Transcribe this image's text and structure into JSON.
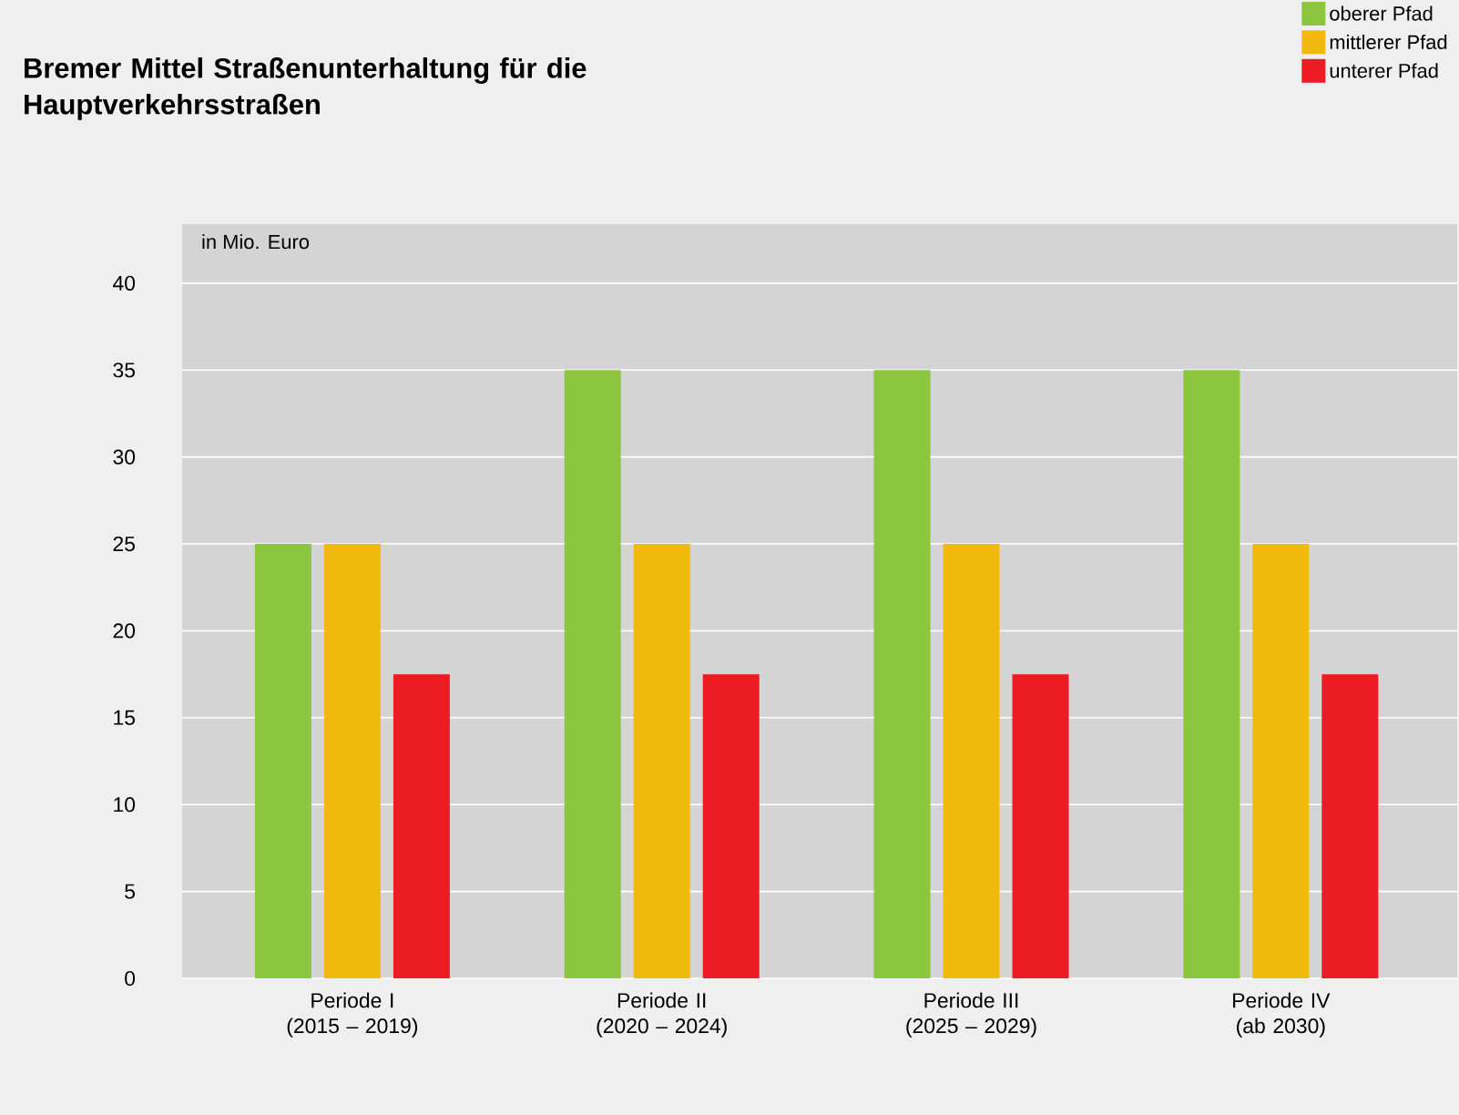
{
  "chart_data": {
    "type": "bar",
    "title": "Bremer Mittel Straßenunterhaltung für die Hauptverkehrsstraßen",
    "ylabel": "in Mio. Euro",
    "categories": [
      "Periode I (2015 – 2019)",
      "Periode II (2020 – 2024)",
      "Periode III (2025 – 2029)",
      "Periode IV (ab 2030)"
    ],
    "series": [
      {
        "name": "oberer Pfad",
        "color": "#8cc63f",
        "values": [
          25,
          35,
          35,
          35
        ]
      },
      {
        "name": "mittlerer Pfad",
        "color": "#f2b90f",
        "values": [
          25,
          25,
          25,
          25
        ]
      },
      {
        "name": "unterer Pfad",
        "color": "#ed1c24",
        "values": [
          17.5,
          17.5,
          17.5,
          17.5
        ]
      }
    ],
    "ylim": [
      0,
      43.4
    ],
    "yticks": [
      0,
      5,
      10,
      15,
      20,
      25,
      30,
      35,
      40
    ],
    "grid": "y",
    "legend": "top right"
  }
}
